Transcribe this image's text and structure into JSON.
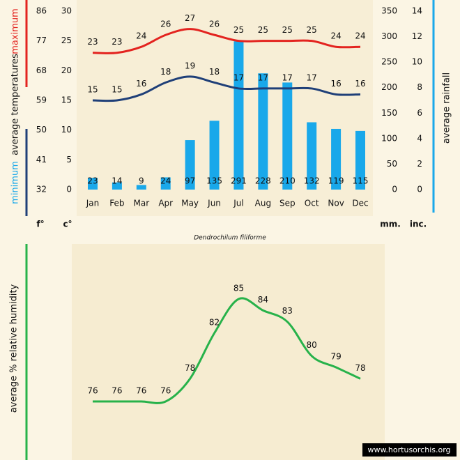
{
  "chart_data": [
    {
      "type": "bar",
      "subtitle": "Dendrochilum filiforme",
      "categories": [
        "Jan",
        "Feb",
        "Mar",
        "Apr",
        "May",
        "Jun",
        "Jul",
        "Aug",
        "Sep",
        "Oct",
        "Nov",
        "Dec"
      ],
      "series": [
        {
          "type": "bar",
          "axis": "y2",
          "color": "#19a8ea",
          "values": [
            23,
            14,
            9,
            24,
            97,
            135,
            291,
            228,
            210,
            132,
            119,
            115
          ]
        },
        {
          "type": "line",
          "name": "maximum",
          "color": "#e3231f",
          "values": [
            23,
            23,
            24,
            26,
            27,
            26,
            25,
            25,
            25,
            25,
            24,
            24
          ]
        },
        {
          "type": "line",
          "name": "minimum",
          "color": "#1f3f78",
          "values": [
            15,
            15,
            16,
            18,
            19,
            18,
            17,
            17,
            17,
            17,
            16,
            16
          ]
        }
      ],
      "ylabel": "average temperatures",
      "yunit": "c°",
      "ylim": [
        0,
        30
      ],
      "yticks": [
        0,
        5,
        10,
        15,
        20,
        25,
        30
      ],
      "y3unit": "f°",
      "y3lim": [
        32,
        86
      ],
      "y3ticks": [
        32,
        41,
        50,
        59,
        68,
        77,
        86
      ],
      "y2label": "average rainfall",
      "y2unit": "mm.",
      "y2lim": [
        0,
        350
      ],
      "y2ticks": [
        0,
        50,
        100,
        150,
        200,
        250,
        300,
        350
      ],
      "y4unit": "inc.",
      "y4lim": [
        0,
        14
      ],
      "y4ticks": [
        0,
        2,
        4,
        6,
        8,
        10,
        12,
        14
      ],
      "watermark": "www.hortusorchis.org"
    },
    {
      "type": "line",
      "ylabel": "average %  relative humidity",
      "color": "#27b24a",
      "values": [
        76,
        76,
        76,
        76,
        78,
        82,
        85,
        84,
        83,
        80,
        79,
        78
      ]
    }
  ]
}
